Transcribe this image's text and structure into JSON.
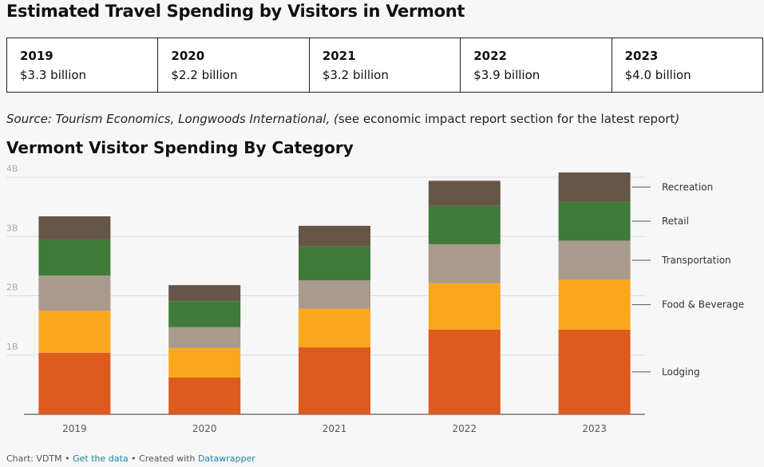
{
  "header": {
    "title": "Estimated Travel Spending by Visitors in Vermont"
  },
  "summary": [
    {
      "year": "2019",
      "amount": "$3.3 billion"
    },
    {
      "year": "2020",
      "amount": "$2.2 billion"
    },
    {
      "year": "2021",
      "amount": "$3.2 billion"
    },
    {
      "year": "2022",
      "amount": "$3.9 billion"
    },
    {
      "year": "2023",
      "amount": "$4.0 billion"
    }
  ],
  "source": {
    "lead": "Source: Tourism Economics, Longwoods International, (",
    "middle": "see economic impact report section for the latest report",
    "end": ")"
  },
  "chart_data": {
    "type": "stacked_bar",
    "title": "Vermont Visitor Spending By Category",
    "categories": [
      "2019",
      "2020",
      "2021",
      "2022",
      "2023"
    ],
    "series": [
      {
        "name": "Lodging",
        "color": "#dd5b1f",
        "values": [
          1.04,
          0.62,
          1.13,
          1.43,
          1.43
        ]
      },
      {
        "name": "Food & Beverage",
        "color": "#f9a81d",
        "values": [
          0.71,
          0.5,
          0.65,
          0.78,
          0.84
        ]
      },
      {
        "name": "Transportation",
        "color": "#a89a8c",
        "values": [
          0.59,
          0.35,
          0.48,
          0.66,
          0.66
        ]
      },
      {
        "name": "Retail",
        "color": "#407b3a",
        "values": [
          0.61,
          0.44,
          0.57,
          0.65,
          0.66
        ]
      },
      {
        "name": "Recreation",
        "color": "#655648",
        "values": [
          0.39,
          0.27,
          0.35,
          0.42,
          0.49
        ]
      }
    ],
    "ylim": [
      0,
      4
    ],
    "yticks": [
      {
        "value": 1,
        "label": "1B"
      },
      {
        "value": 2,
        "label": "2B"
      },
      {
        "value": 3,
        "label": "3B"
      },
      {
        "value": 4,
        "label": "4B"
      }
    ],
    "grid": true
  },
  "footer": {
    "credit": "Chart: VDTM",
    "sep1": "•",
    "data_link": "Get the data",
    "sep2": "•",
    "created": "Created with",
    "tool_link": "Datawrapper"
  }
}
